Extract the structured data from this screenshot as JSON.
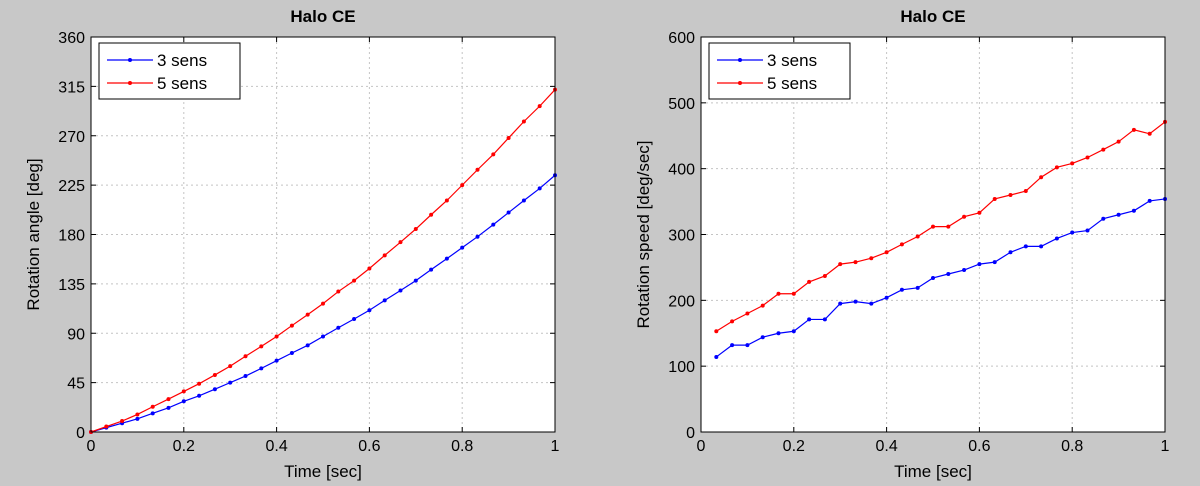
{
  "chart_data": [
    {
      "type": "line",
      "title": "Halo CE",
      "xlabel": "Time [sec]",
      "ylabel": "Rotation angle [deg]",
      "xlim": [
        0,
        1
      ],
      "ylim": [
        0,
        360
      ],
      "xticks": [
        0,
        0.2,
        0.4,
        0.6,
        0.8,
        1
      ],
      "xtick_labels": [
        "0",
        "0.2",
        "0.4",
        "0.6",
        "0.8",
        "1"
      ],
      "yticks": [
        0,
        45,
        90,
        135,
        180,
        225,
        270,
        315,
        360
      ],
      "ytick_labels": [
        "0",
        "45",
        "90",
        "135",
        "180",
        "225",
        "270",
        "315",
        "360"
      ],
      "grid": true,
      "legend_position": "top-left",
      "x": [
        0,
        0.033,
        0.067,
        0.1,
        0.133,
        0.167,
        0.2,
        0.233,
        0.267,
        0.3,
        0.333,
        0.367,
        0.4,
        0.433,
        0.467,
        0.5,
        0.533,
        0.567,
        0.6,
        0.633,
        0.667,
        0.7,
        0.733,
        0.767,
        0.8,
        0.833,
        0.867,
        0.9,
        0.933,
        0.967,
        1.0
      ],
      "series": [
        {
          "name": "3 sens",
          "color": "#0000ff",
          "values": [
            0,
            4,
            8,
            12,
            17,
            22,
            28,
            33,
            39,
            45,
            51,
            58,
            65,
            72,
            79,
            87,
            95,
            103,
            111,
            120,
            129,
            138,
            148,
            158,
            168,
            178,
            189,
            200,
            211,
            222,
            234
          ]
        },
        {
          "name": "5 sens",
          "color": "#ff0000",
          "values": [
            0,
            5,
            10,
            16,
            23,
            30,
            37,
            44,
            52,
            60,
            69,
            78,
            87,
            97,
            107,
            117,
            128,
            138,
            149,
            161,
            173,
            185,
            198,
            211,
            225,
            239,
            253,
            268,
            283,
            297,
            312
          ]
        }
      ]
    },
    {
      "type": "line",
      "title": "Halo CE",
      "xlabel": "Time [sec]",
      "ylabel": "Rotation speed [deg/sec]",
      "xlim": [
        0,
        1
      ],
      "ylim": [
        0,
        600
      ],
      "xticks": [
        0,
        0.2,
        0.4,
        0.6,
        0.8,
        1
      ],
      "xtick_labels": [
        "0",
        "0.2",
        "0.4",
        "0.6",
        "0.8",
        "1"
      ],
      "yticks": [
        0,
        100,
        200,
        300,
        400,
        500,
        600
      ],
      "ytick_labels": [
        "0",
        "100",
        "200",
        "300",
        "400",
        "500",
        "600"
      ],
      "grid": true,
      "legend_position": "top-left",
      "x": [
        0.033,
        0.067,
        0.1,
        0.133,
        0.167,
        0.2,
        0.233,
        0.267,
        0.3,
        0.333,
        0.367,
        0.4,
        0.433,
        0.467,
        0.5,
        0.533,
        0.567,
        0.6,
        0.633,
        0.667,
        0.7,
        0.733,
        0.767,
        0.8,
        0.833,
        0.867,
        0.9,
        0.933,
        0.967,
        1.0
      ],
      "series": [
        {
          "name": "3 sens",
          "color": "#0000ff",
          "values": [
            114,
            132,
            132,
            144,
            150,
            153,
            171,
            171,
            195,
            198,
            195,
            204,
            216,
            219,
            234,
            240,
            246,
            255,
            258,
            273,
            282,
            282,
            294,
            303,
            306,
            324,
            330,
            336,
            351,
            354
          ]
        },
        {
          "name": "5 sens",
          "color": "#ff0000",
          "values": [
            153,
            168,
            180,
            192,
            210,
            210,
            228,
            237,
            255,
            258,
            264,
            273,
            285,
            297,
            312,
            312,
            327,
            333,
            354,
            360,
            366,
            387,
            402,
            408,
            417,
            429,
            441,
            459,
            453,
            471
          ]
        }
      ]
    }
  ]
}
